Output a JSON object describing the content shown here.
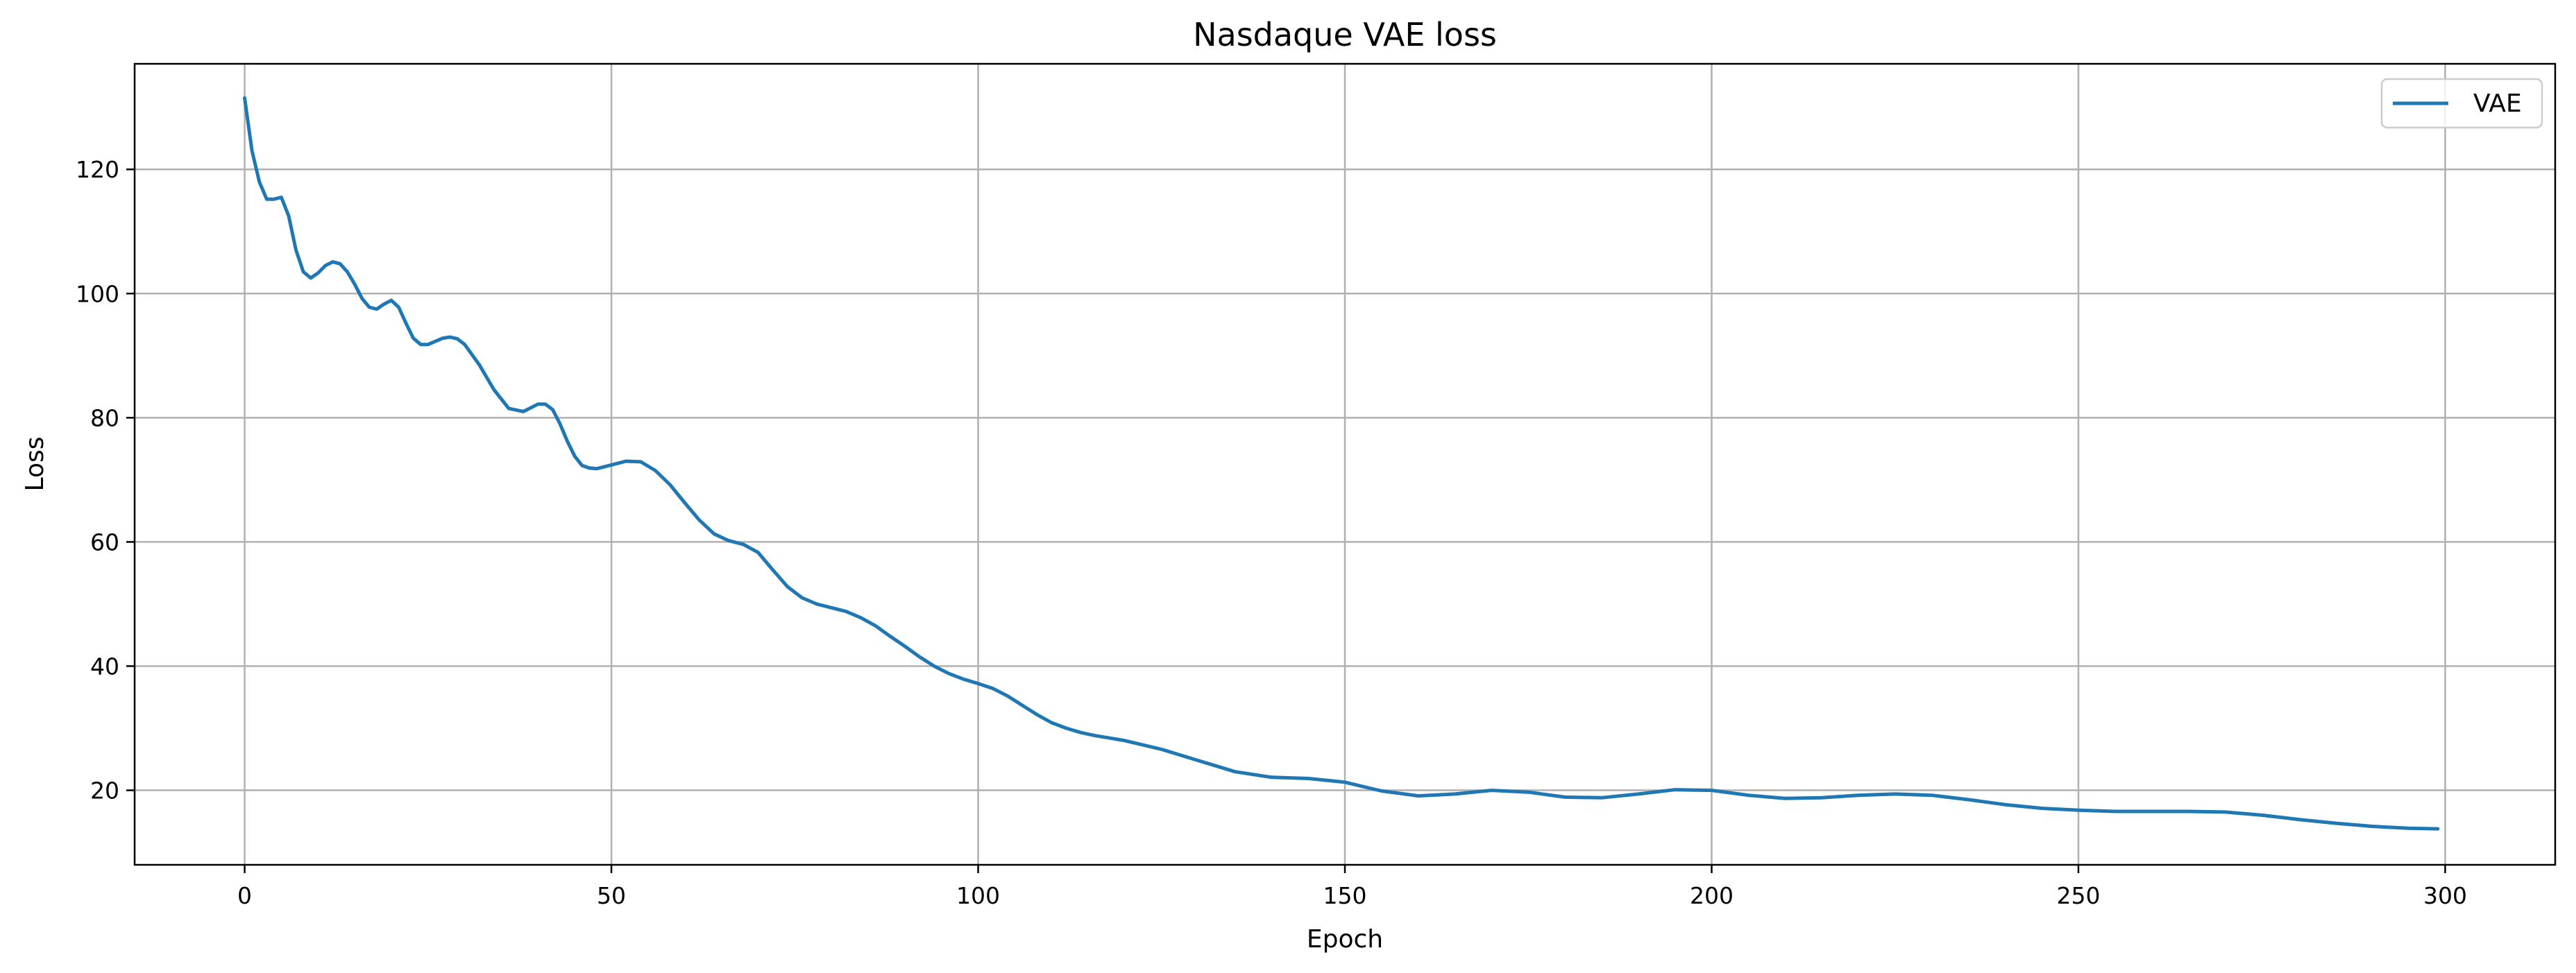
{
  "chart_data": {
    "type": "line",
    "title": "Nasdaque VAE loss",
    "xlabel": "Epoch",
    "ylabel": "Loss",
    "xlim": [
      -15,
      315
    ],
    "ylim": [
      8,
      137
    ],
    "xticks": [
      0,
      50,
      100,
      150,
      200,
      250,
      300
    ],
    "yticks": [
      20,
      40,
      60,
      80,
      100,
      120
    ],
    "grid": true,
    "legend": "top-right",
    "line_color": "#1f77b4",
    "series": [
      {
        "name": "VAE",
        "x": [
          0,
          1,
          2,
          3,
          4,
          5,
          6,
          7,
          8,
          9,
          10,
          11,
          12,
          13,
          14,
          15,
          16,
          17,
          18,
          19,
          20,
          21,
          22,
          23,
          24,
          25,
          26,
          27,
          28,
          29,
          30,
          32,
          34,
          36,
          38,
          40,
          41,
          42,
          43,
          44,
          45,
          46,
          47,
          48,
          50,
          52,
          54,
          56,
          58,
          60,
          62,
          64,
          66,
          68,
          70,
          72,
          74,
          76,
          78,
          80,
          82,
          84,
          86,
          88,
          90,
          92,
          94,
          96,
          98,
          100,
          102,
          104,
          106,
          108,
          110,
          112,
          114,
          116,
          118,
          120,
          125,
          130,
          135,
          140,
          145,
          150,
          155,
          160,
          165,
          170,
          175,
          180,
          185,
          190,
          195,
          200,
          205,
          210,
          215,
          220,
          225,
          230,
          235,
          240,
          245,
          250,
          255,
          260,
          265,
          270,
          275,
          280,
          285,
          290,
          295,
          299
        ],
        "y": [
          131.5,
          123,
          118,
          115.2,
          115.2,
          115.5,
          112.5,
          107,
          103.5,
          102.5,
          103.3,
          104.5,
          105.1,
          104.8,
          103.5,
          101.5,
          99.2,
          97.8,
          97.5,
          98.3,
          98.9,
          97.8,
          95.2,
          92.8,
          91.8,
          91.8,
          92.3,
          92.8,
          93,
          92.7,
          91.8,
          88.5,
          84.5,
          81.5,
          81,
          82.2,
          82.2,
          81.3,
          79,
          76.2,
          73.8,
          72.3,
          71.9,
          71.8,
          72.4,
          73,
          72.9,
          71.5,
          69.2,
          66.3,
          63.5,
          61.3,
          60.2,
          59.6,
          58.3,
          55.5,
          52.8,
          51,
          50,
          49.4,
          48.8,
          47.8,
          46.5,
          44.8,
          43.2,
          41.5,
          40,
          38.8,
          37.9,
          37.2,
          36.4,
          35.2,
          33.7,
          32.2,
          30.9,
          30,
          29.3,
          28.8,
          28.4,
          28,
          26.6,
          24.8,
          23,
          22.1,
          21.9,
          21.3,
          19.9,
          19.1,
          19.4,
          20,
          19.7,
          18.9,
          18.8,
          19.4,
          20.1,
          20,
          19.2,
          18.7,
          18.8,
          19.2,
          19.4,
          19.2,
          18.5,
          17.7,
          17.1,
          16.8,
          16.6,
          16.6,
          16.6,
          16.5,
          16,
          15.3,
          14.7,
          14.2,
          13.9,
          13.8
        ]
      }
    ]
  }
}
